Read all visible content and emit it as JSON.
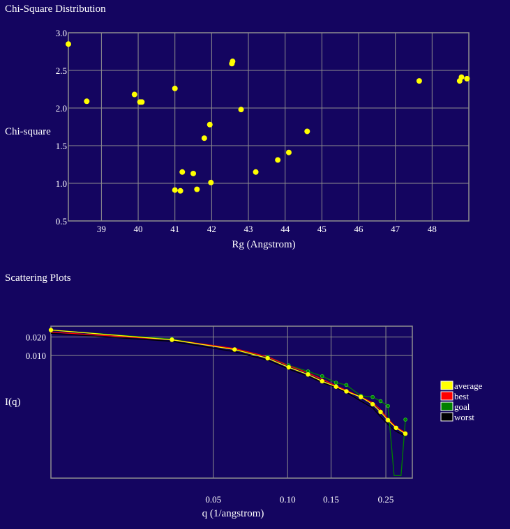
{
  "sections": {
    "chi_title": "Chi-Square Distribution",
    "scatter_title": "Scattering Plots"
  },
  "colors": {
    "background": "#140560",
    "grid": "#8f8f8f",
    "point": "#ffff00"
  },
  "chart_data": [
    {
      "type": "scatter",
      "title": "Chi-Square Distribution",
      "xlabel": "Rg (Angstrom)",
      "ylabel": "Chi-square",
      "xlim": [
        38.1,
        49.0
      ],
      "ylim": [
        0.5,
        3.0
      ],
      "xticks": [
        39,
        40,
        41,
        42,
        43,
        44,
        45,
        46,
        47,
        48
      ],
      "yticks": [
        3.0,
        2.5,
        2.0,
        1.5,
        1.0,
        0.5
      ],
      "ytick_labels": [
        "3.0",
        "2.5",
        "2.0",
        "1.5",
        "1.0",
        "0.5"
      ],
      "grid": true,
      "points": [
        {
          "x": 38.1,
          "y": 2.85
        },
        {
          "x": 38.6,
          "y": 2.09
        },
        {
          "x": 39.9,
          "y": 2.18
        },
        {
          "x": 40.05,
          "y": 2.08
        },
        {
          "x": 40.1,
          "y": 2.08
        },
        {
          "x": 41.0,
          "y": 2.26
        },
        {
          "x": 41.0,
          "y": 0.91
        },
        {
          "x": 41.15,
          "y": 0.9
        },
        {
          "x": 41.2,
          "y": 1.15
        },
        {
          "x": 41.5,
          "y": 1.13
        },
        {
          "x": 41.6,
          "y": 0.92
        },
        {
          "x": 41.8,
          "y": 1.6
        },
        {
          "x": 41.95,
          "y": 1.78
        },
        {
          "x": 41.98,
          "y": 1.01
        },
        {
          "x": 42.55,
          "y": 2.59
        },
        {
          "x": 42.57,
          "y": 2.62
        },
        {
          "x": 42.8,
          "y": 1.98
        },
        {
          "x": 43.2,
          "y": 1.15
        },
        {
          "x": 43.8,
          "y": 1.31
        },
        {
          "x": 44.1,
          "y": 1.41
        },
        {
          "x": 44.6,
          "y": 1.69
        },
        {
          "x": 47.65,
          "y": 2.36
        },
        {
          "x": 48.75,
          "y": 2.36
        },
        {
          "x": 48.8,
          "y": 2.41
        },
        {
          "x": 48.95,
          "y": 2.39
        }
      ]
    },
    {
      "type": "line",
      "title": "Scattering Plots",
      "xlabel": "q (1/angstrom)",
      "ylabel": "I(q)",
      "xscale": "log",
      "yscale": "log",
      "xlim": [
        0.011,
        0.32
      ],
      "ylim": [
        0.0001,
        0.03
      ],
      "xticks": [
        0.05,
        0.1,
        0.15,
        0.25
      ],
      "xtick_labels": [
        "0.05",
        "0.10",
        "0.15",
        "0.25"
      ],
      "yticks": [
        0.02,
        0.01
      ],
      "ytick_labels": [
        "0.020",
        "0.010"
      ],
      "grid": true,
      "legend": "right",
      "series": [
        {
          "name": "average",
          "color": "#ffff00",
          "x": [
            0.011,
            0.034,
            0.061,
            0.083,
            0.101,
            0.121,
            0.138,
            0.157,
            0.173,
            0.198,
            0.221,
            0.238,
            0.255,
            0.275,
            0.3
          ],
          "y": [
            0.026,
            0.018,
            0.0125,
            0.009,
            0.0064,
            0.0049,
            0.0038,
            0.0031,
            0.0026,
            0.0021,
            0.0016,
            0.0012,
            0.00088,
            0.00066,
            0.00053
          ]
        },
        {
          "name": "best",
          "color": "#ff0000",
          "x": [
            0.011,
            0.034,
            0.061,
            0.083,
            0.101,
            0.121,
            0.138,
            0.157,
            0.173,
            0.198,
            0.221,
            0.238,
            0.255,
            0.275,
            0.3
          ],
          "y": [
            0.024,
            0.018,
            0.013,
            0.0095,
            0.0068,
            0.0052,
            0.0041,
            0.0032,
            0.0027,
            0.0021,
            0.0017,
            0.0013,
            0.00092,
            0.00068,
            0.00055
          ]
        },
        {
          "name": "goal",
          "color": "#008000",
          "x": [
            0.011,
            0.034,
            0.061,
            0.083,
            0.101,
            0.121,
            0.138,
            0.157,
            0.173,
            0.198,
            0.221,
            0.238,
            0.255,
            0.27,
            0.288,
            0.3
          ],
          "y": [
            0.026,
            0.0185,
            0.0125,
            0.0095,
            0.0069,
            0.0055,
            0.0046,
            0.0036,
            0.0033,
            0.0022,
            0.0021,
            0.0018,
            0.0015,
            0.00011,
            0.00011,
            0.0009
          ]
        },
        {
          "name": "worst",
          "color": "#000000",
          "x": [
            0.011,
            0.034,
            0.061,
            0.083,
            0.101,
            0.121,
            0.138,
            0.157,
            0.173,
            0.198,
            0.221,
            0.238,
            0.255,
            0.275,
            0.3
          ],
          "y": [
            0.023,
            0.017,
            0.0115,
            0.0084,
            0.006,
            0.0046,
            0.0036,
            0.003,
            0.0025,
            0.0018,
            0.0014,
            0.001,
            0.00075,
            0.00058,
            0.00048
          ]
        }
      ]
    }
  ]
}
